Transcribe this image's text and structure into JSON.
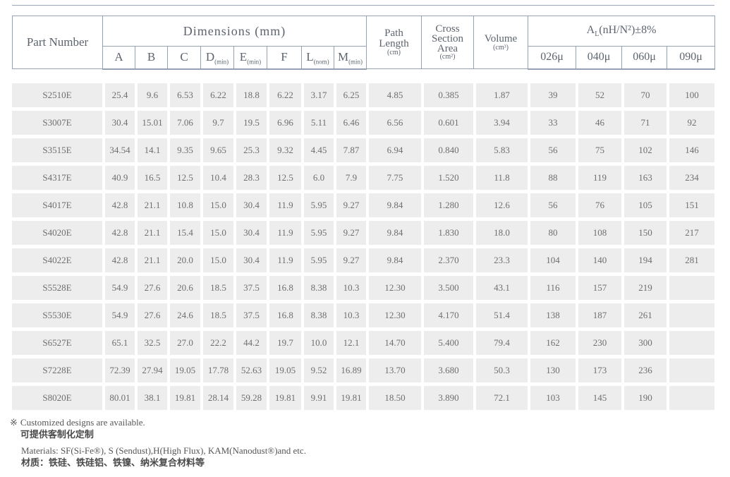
{
  "header": {
    "part_number": "Part Number",
    "dimensions_title": "Dimensions (mm)",
    "dim_columns": [
      {
        "main": "A",
        "sub": ""
      },
      {
        "main": "B",
        "sub": ""
      },
      {
        "main": "C",
        "sub": ""
      },
      {
        "main": "D",
        "sub": "(min)"
      },
      {
        "main": "E",
        "sub": "(min)"
      },
      {
        "main": "F",
        "sub": ""
      },
      {
        "main": "L",
        "sub": "(nom)"
      },
      {
        "main": "M",
        "sub": "(min)"
      }
    ],
    "path_length": {
      "line1": "Path",
      "line2": "Length",
      "unit": "(cm)"
    },
    "cross_section": {
      "line1": "Cross",
      "line2": "Section",
      "line3": "Area",
      "unit": "(cm²)"
    },
    "volume": {
      "line1": "Volume",
      "unit": "(cm³)"
    },
    "al": {
      "main": "A",
      "sub": "L",
      "rest": "(nH/N²)±8%"
    },
    "al_columns": [
      "026μ",
      "040μ",
      "060μ",
      "090μ"
    ]
  },
  "rows": [
    {
      "part": "S2510E",
      "values": [
        "25.4",
        "9.6",
        "6.53",
        "6.22",
        "18.8",
        "6.22",
        "3.17",
        "6.25",
        "4.85",
        "0.385",
        "1.87",
        "39",
        "52",
        "70",
        "100"
      ]
    },
    {
      "part": "S3007E",
      "values": [
        "30.4",
        "15.01",
        "7.06",
        "9.7",
        "19.5",
        "6.96",
        "5.11",
        "6.46",
        "6.56",
        "0.601",
        "3.94",
        "33",
        "46",
        "71",
        "92"
      ]
    },
    {
      "part": "S3515E",
      "values": [
        "34.54",
        "14.1",
        "9.35",
        "9.65",
        "25.3",
        "9.32",
        "4.45",
        "7.87",
        "6.94",
        "0.840",
        "5.83",
        "56",
        "75",
        "102",
        "146"
      ]
    },
    {
      "part": "S4317E",
      "values": [
        "40.9",
        "16.5",
        "12.5",
        "10.4",
        "28.3",
        "12.5",
        "6.0",
        "7.9",
        "7.75",
        "1.520",
        "11.8",
        "88",
        "119",
        "163",
        "234"
      ]
    },
    {
      "part": "S4017E",
      "values": [
        "42.8",
        "21.1",
        "10.8",
        "15.0",
        "30.4",
        "11.9",
        "5.95",
        "9.27",
        "9.84",
        "1.280",
        "12.6",
        "56",
        "76",
        "105",
        "151"
      ]
    },
    {
      "part": "S4020E",
      "values": [
        "42.8",
        "21.1",
        "15.4",
        "15.0",
        "30.4",
        "11.9",
        "5.95",
        "9.27",
        "9.84",
        "1.830",
        "18.0",
        "80",
        "108",
        "150",
        "217"
      ]
    },
    {
      "part": "S4022E",
      "values": [
        "42.8",
        "21.1",
        "20.0",
        "15.0",
        "30.4",
        "11.9",
        "5.95",
        "9.27",
        "9.84",
        "2.370",
        "23.3",
        "104",
        "140",
        "194",
        "281"
      ]
    },
    {
      "part": "S5528E",
      "values": [
        "54.9",
        "27.6",
        "20.6",
        "18.5",
        "37.5",
        "16.8",
        "8.38",
        "10.3",
        "12.30",
        "3.500",
        "43.1",
        "116",
        "157",
        "219",
        ""
      ]
    },
    {
      "part": "S5530E",
      "values": [
        "54.9",
        "27.6",
        "24.6",
        "18.5",
        "37.5",
        "16.8",
        "8.38",
        "10.3",
        "12.30",
        "4.170",
        "51.4",
        "138",
        "187",
        "261",
        ""
      ]
    },
    {
      "part": "S6527E",
      "values": [
        "65.1",
        "32.5",
        "27.0",
        "22.2",
        "44.2",
        "19.7",
        "10.0",
        "12.1",
        "14.70",
        "5.400",
        "79.4",
        "162",
        "230",
        "300",
        ""
      ]
    },
    {
      "part": "S7228E",
      "values": [
        "72.39",
        "27.94",
        "19.05",
        "17.78",
        "52.63",
        "19.05",
        "9.52",
        "16.89",
        "13.70",
        "3.680",
        "50.3",
        "130",
        "173",
        "236",
        ""
      ]
    },
    {
      "part": "S8020E",
      "values": [
        "80.01",
        "38.1",
        "19.81",
        "28.14",
        "59.28",
        "19.81",
        "9.91",
        "19.81",
        "18.50",
        "3.890",
        "72.1",
        "103",
        "145",
        "190",
        ""
      ]
    }
  ],
  "notes": {
    "marker": "※",
    "customized_en": "Customized designs are available.",
    "customized_zh": "可提供客制化定制",
    "materials_en": "Materials: SF(Si-Fe®), S (Sendust),H(High Flux), KAM(Nanodust®)and etc.",
    "materials_zh": "材质：铁硅、铁硅铝、铁镍、纳米复合材料等"
  },
  "colors": {
    "border": "#94a2b4",
    "cell_background": "#ededed",
    "data_text": "#6f6f6f",
    "header_text": "#5d646e"
  }
}
